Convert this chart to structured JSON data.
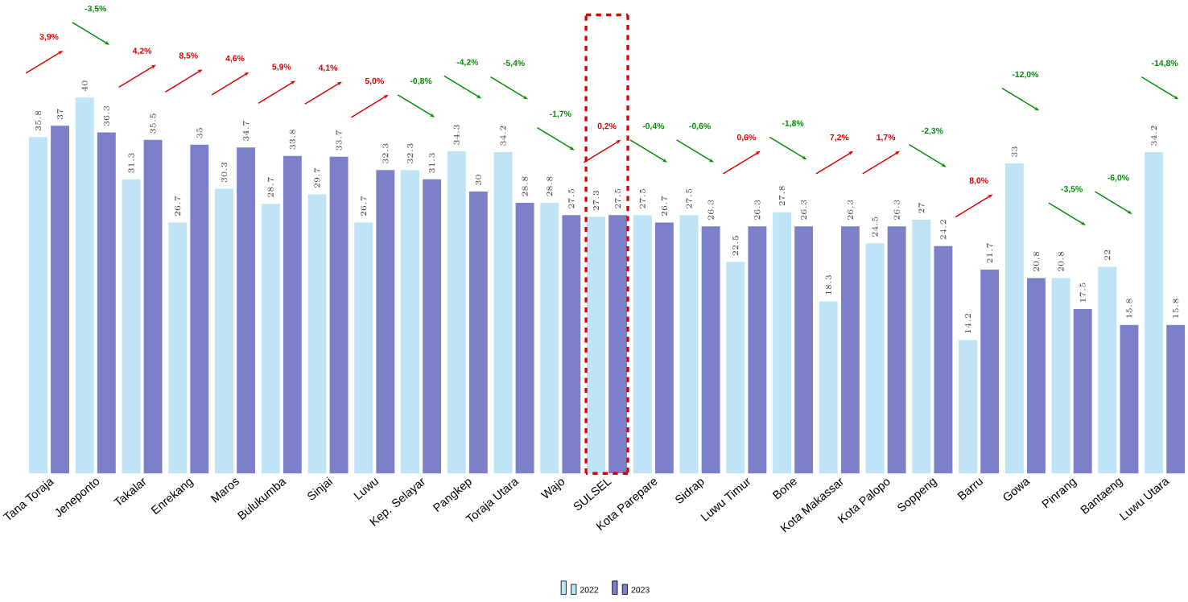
{
  "chart_data": {
    "type": "bar",
    "categories": [
      "Tana Toraja",
      "Jeneponto",
      "Takalar",
      "Enrekang",
      "Maros",
      "Bulukumba",
      "Sinjai",
      "Luwu",
      "Kep. Selayar",
      "Pangkep",
      "Toraja Utara",
      "Wajo",
      "SULSEL",
      "Kota Parepare",
      "Sidrap",
      "Luwu Timur",
      "Bone",
      "Kota Makassar",
      "Kota Palopo",
      "Soppeng",
      "Barru",
      "Gowa",
      "Pinrang",
      "Bantaeng",
      "Luwu Utara"
    ],
    "series": [
      {
        "name": "2022",
        "color": "#bfe4f6",
        "values": [
          35.8,
          40.0,
          31.3,
          26.7,
          30.3,
          28.7,
          29.7,
          26.7,
          32.3,
          34.3,
          34.2,
          28.8,
          27.3,
          27.5,
          27.5,
          22.5,
          27.8,
          18.3,
          24.5,
          27.0,
          14.2,
          33.0,
          20.8,
          22.0,
          34.2
        ]
      },
      {
        "name": "2023",
        "color": "#7c80c8",
        "values": [
          37.0,
          36.3,
          35.5,
          35.0,
          34.7,
          33.8,
          33.7,
          32.3,
          31.3,
          30.0,
          28.8,
          27.5,
          27.5,
          26.7,
          26.3,
          26.3,
          26.3,
          26.3,
          26.3,
          24.2,
          21.7,
          20.8,
          17.5,
          15.8,
          15.8
        ]
      }
    ],
    "data_labels": true,
    "annotations": [
      "3,9%",
      "-3,5%",
      "4,2%",
      "8,5%",
      "4,6%",
      "5,9%",
      "4,1%",
      "5,0%",
      "-0,8%",
      "-4,2%",
      "-5,4%",
      "-1,7%",
      "0,2%",
      "-0,4%",
      "-0,6%",
      "0,6%",
      "-1,8%",
      "7,2%",
      "1,7%",
      "-2,3%",
      "8,0%",
      "-12,0%",
      "-3,5%",
      "-6,0%",
      "-14,8%"
    ],
    "legend": "bottom"
  }
}
